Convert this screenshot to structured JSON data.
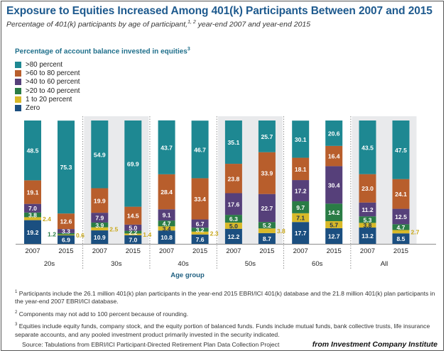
{
  "header": {
    "title": "Exposure to Equities Increased Among 401(k) Participants Between 2007 and 2015",
    "subtitle_text": "Percentage of 401(k) participants by age of participant,",
    "subtitle_sup": "1, 2",
    "subtitle_end": " year-end 2007 and year-end 2015"
  },
  "legend": {
    "title": "Percentage of account balance invested in equities",
    "title_sup": "3"
  },
  "chart_data": {
    "type": "bar",
    "stacked": true,
    "xlabel": "Age group",
    "ylabel": "",
    "ylim": [
      0,
      100
    ],
    "groups": [
      "20s",
      "30s",
      "40s",
      "50s",
      "60s",
      "All"
    ],
    "categories": [
      "2007",
      "2015",
      "2007",
      "2015",
      "2007",
      "2015",
      "2007",
      "2015",
      "2007",
      "2015",
      "2007",
      "2015"
    ],
    "series": [
      {
        "name": "Zero",
        "color": "#1b4f80",
        "values": [
          19.2,
          6.9,
          10.9,
          7.0,
          10.8,
          7.6,
          12.2,
          8.7,
          17.7,
          12.7,
          13.2,
          8.5
        ]
      },
      {
        "name": "1 to 20 percent",
        "color": "#d8b928",
        "values": [
          2.4,
          0.6,
          2.5,
          1.4,
          3.4,
          2.3,
          5.0,
          3.8,
          7.1,
          5.7,
          3.8,
          2.7
        ]
      },
      {
        "name": ">20 to 40 percent",
        "color": "#2a7c46",
        "values": [
          3.8,
          1.2,
          3.9,
          2.2,
          4.7,
          3.2,
          6.3,
          5.2,
          9.7,
          14.2,
          5.3,
          4.7
        ]
      },
      {
        "name": ">40 to 60 percent",
        "color": "#56407a",
        "values": [
          7.0,
          3.3,
          7.9,
          5.0,
          9.1,
          6.7,
          17.6,
          22.7,
          17.2,
          30.4,
          11.2,
          12.5
        ]
      },
      {
        "name": ">60 to 80 percent",
        "color": "#b85e2c",
        "values": [
          19.1,
          12.6,
          19.9,
          14.5,
          28.4,
          33.4,
          23.8,
          33.9,
          18.1,
          16.4,
          23.0,
          24.1
        ]
      },
      {
        "name": ">80 percent",
        "color": "#1e8892",
        "values": [
          48.5,
          75.3,
          54.9,
          69.9,
          43.7,
          46.7,
          35.1,
          25.7,
          30.1,
          20.6,
          43.5,
          47.5
        ]
      }
    ],
    "grid": false,
    "legend_position": "top-left"
  },
  "footnotes": [
    {
      "num": "1",
      "text": "Participants include the 26.1 million 401(k) plan participants in the year-end 2015 EBRI/ICI 401(k) database and the 21.8 million 401(k) plan participants in the year-end 2007 EBRI/ICI database."
    },
    {
      "num": "2",
      "text": "Components may not add to 100 percent because of rounding."
    },
    {
      "num": "3",
      "text": "Equities include equity funds, company stock, and the equity portion of balanced funds. Funds include mutual funds, bank collective trusts, life insurance separate accounts, and any pooled investment product primarily invested in the security indicated."
    }
  ],
  "source": "Source: Tabulations from EBRI/ICI Participant-Directed Retirement Plan Data Collection Project",
  "credit": "from Investment Company Institute"
}
